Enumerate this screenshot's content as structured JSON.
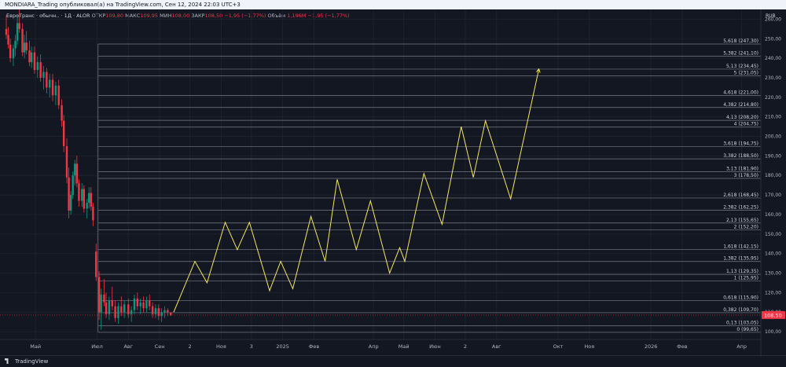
{
  "header": {
    "published_by": "MONDIARA_Trading опубликовал(а) на TradingView.com, Сен 12, 2024 22:03 UTC+3"
  },
  "legend": {
    "symbol": "ЕвроТранс · обычн.. · 1Д · ALOR",
    "open_label": "ОТКР",
    "open": "109,80",
    "high_label": "МАКС",
    "high": "109,95",
    "low_label": "МИН",
    "low": "108,00",
    "close_label": "ЗАКР",
    "close": "108,50",
    "change": "−1,95 (−1,77%)",
    "volume_label": "Объём",
    "volume": "1,196M",
    "volume_change": "−1,95 (−1,77%)"
  },
  "footer": {
    "brand": "TradingView"
  },
  "colors": {
    "up": "#089981",
    "down": "#f23645",
    "projection": "#f5e663",
    "fib": "#787b86",
    "price_tag": "#f23645"
  },
  "chart_data": {
    "type": "candlestick",
    "currency": "RUB",
    "y_ticks": [
      100,
      110,
      120,
      130,
      140,
      150,
      160,
      170,
      180,
      190,
      200,
      210,
      220,
      230,
      240,
      250,
      260
    ],
    "y_tick_labels": [
      "100,00",
      "110,00",
      "120,00",
      "130,00",
      "140,00",
      "150,00",
      "160,00",
      "170,00",
      "180,00",
      "190,00",
      "200,00",
      "210,00",
      "220,00",
      "230,00",
      "240,00",
      "250,00",
      "260,00"
    ],
    "ylim": [
      96,
      265
    ],
    "xlim": [
      "2024-04-02",
      "2026-04-20"
    ],
    "x_ticks": [
      {
        "label": "Май",
        "date": "2024-05-01"
      },
      {
        "label": "Июл",
        "date": "2024-07-01"
      },
      {
        "label": "Авг",
        "date": "2024-08-01"
      },
      {
        "label": "Сен",
        "date": "2024-09-01"
      },
      {
        "label": "2",
        "date": "2024-10-01"
      },
      {
        "label": "Ноя",
        "date": "2024-11-01"
      },
      {
        "label": "3",
        "date": "2024-12-01"
      },
      {
        "label": "2025",
        "date": "2025-01-01"
      },
      {
        "label": "Фев",
        "date": "2025-02-01"
      },
      {
        "label": "Апр",
        "date": "2025-04-01"
      },
      {
        "label": "Май",
        "date": "2025-05-01"
      },
      {
        "label": "Июн",
        "date": "2025-06-01"
      },
      {
        "label": "2",
        "date": "2025-07-01"
      },
      {
        "label": "Авг",
        "date": "2025-08-01"
      },
      {
        "label": "Окт",
        "date": "2025-10-01"
      },
      {
        "label": "Ноя",
        "date": "2025-11-01"
      },
      {
        "label": "2026",
        "date": "2026-01-01"
      },
      {
        "label": "Фев",
        "date": "2026-02-01"
      },
      {
        "label": "Апр",
        "date": "2026-04-01"
      }
    ],
    "current_price": {
      "value": 108.5,
      "label": "108,50"
    },
    "fib_levels": [
      {
        "ratio": "0",
        "value": 99.65,
        "label": "0 (99,65)"
      },
      {
        "ratio": "0,13",
        "value": 103.05,
        "label": "0,13 (103,05)"
      },
      {
        "ratio": "0,382",
        "value": 109.7,
        "label": "0,382 (109,70)"
      },
      {
        "ratio": "0,618",
        "value": 115.9,
        "label": "0,618 (115,90)"
      },
      {
        "ratio": "1",
        "value": 125.95,
        "label": "1 (125,95)"
      },
      {
        "ratio": "1,13",
        "value": 129.35,
        "label": "1,13 (129,35)"
      },
      {
        "ratio": "1,382",
        "value": 135.95,
        "label": "1,382 (135,95)"
      },
      {
        "ratio": "1,618",
        "value": 142.15,
        "label": "1,618 (142,15)"
      },
      {
        "ratio": "2",
        "value": 152.2,
        "label": "2 (152,20)"
      },
      {
        "ratio": "2,13",
        "value": 155.65,
        "label": "2,13 (155,65)"
      },
      {
        "ratio": "2,382",
        "value": 162.25,
        "label": "2,382 (162,25)"
      },
      {
        "ratio": "2,618",
        "value": 168.45,
        "label": "2,618 (168,45)"
      },
      {
        "ratio": "3",
        "value": 178.5,
        "label": "3 (178,50)"
      },
      {
        "ratio": "3,13",
        "value": 181.9,
        "label": "3,13 (181,90)"
      },
      {
        "ratio": "3,382",
        "value": 188.5,
        "label": "3,382 (188,50)"
      },
      {
        "ratio": "3,618",
        "value": 194.75,
        "label": "3,618 (194,75)"
      },
      {
        "ratio": "4",
        "value": 204.75,
        "label": "4 (204,75)"
      },
      {
        "ratio": "4,13",
        "value": 208.2,
        "label": "4,13 (208,20)"
      },
      {
        "ratio": "4,382",
        "value": 214.8,
        "label": "4,382 (214,80)"
      },
      {
        "ratio": "4,618",
        "value": 221.0,
        "label": "4,618 (221,00)"
      },
      {
        "ratio": "5",
        "value": 231.05,
        "label": "5 (231,05)"
      },
      {
        "ratio": "5,13",
        "value": 234.45,
        "label": "5,13 (234,45)"
      },
      {
        "ratio": "5,382",
        "value": 241.1,
        "label": "5,382 (241,10)"
      },
      {
        "ratio": "5,618",
        "value": 247.3,
        "label": "5,618 (247,30)"
      }
    ],
    "projection_path": [
      {
        "date": "2024-09-15",
        "value": 110
      },
      {
        "date": "2024-10-06",
        "value": 136
      },
      {
        "date": "2024-10-18",
        "value": 125
      },
      {
        "date": "2024-11-05",
        "value": 156
      },
      {
        "date": "2024-11-17",
        "value": 142
      },
      {
        "date": "2024-11-29",
        "value": 156
      },
      {
        "date": "2024-12-19",
        "value": 121
      },
      {
        "date": "2024-12-30",
        "value": 136
      },
      {
        "date": "2025-01-11",
        "value": 122
      },
      {
        "date": "2025-01-29",
        "value": 159
      },
      {
        "date": "2025-02-12",
        "value": 136
      },
      {
        "date": "2025-02-24",
        "value": 178
      },
      {
        "date": "2025-03-15",
        "value": 142
      },
      {
        "date": "2025-03-29",
        "value": 167
      },
      {
        "date": "2025-04-17",
        "value": 130
      },
      {
        "date": "2025-04-27",
        "value": 143
      },
      {
        "date": "2025-05-02",
        "value": 136
      },
      {
        "date": "2025-05-21",
        "value": 181
      },
      {
        "date": "2025-06-08",
        "value": 155
      },
      {
        "date": "2025-06-27",
        "value": 205
      },
      {
        "date": "2025-07-09",
        "value": 179
      },
      {
        "date": "2025-07-21",
        "value": 208
      },
      {
        "date": "2025-08-15",
        "value": 168
      },
      {
        "date": "2025-09-12",
        "value": 234.5
      }
    ],
    "candles": [
      {
        "date": "2024-04-02",
        "o": 255,
        "h": 262,
        "l": 250,
        "c": 252
      },
      {
        "date": "2024-04-04",
        "o": 252,
        "h": 256,
        "l": 245,
        "c": 247
      },
      {
        "date": "2024-04-06",
        "o": 247,
        "h": 250,
        "l": 238,
        "c": 240
      },
      {
        "date": "2024-04-09",
        "o": 240,
        "h": 247,
        "l": 236,
        "c": 245
      },
      {
        "date": "2024-04-11",
        "o": 245,
        "h": 252,
        "l": 241,
        "c": 249
      },
      {
        "date": "2024-04-13",
        "o": 249,
        "h": 262,
        "l": 247,
        "c": 258
      },
      {
        "date": "2024-04-15",
        "o": 258,
        "h": 265,
        "l": 253,
        "c": 255
      },
      {
        "date": "2024-04-18",
        "o": 255,
        "h": 258,
        "l": 241,
        "c": 243
      },
      {
        "date": "2024-04-20",
        "o": 243,
        "h": 252,
        "l": 240,
        "c": 248
      },
      {
        "date": "2024-04-22",
        "o": 248,
        "h": 254,
        "l": 242,
        "c": 244
      },
      {
        "date": "2024-04-25",
        "o": 244,
        "h": 249,
        "l": 236,
        "c": 238
      },
      {
        "date": "2024-04-27",
        "o": 238,
        "h": 246,
        "l": 235,
        "c": 243
      },
      {
        "date": "2024-04-30",
        "o": 243,
        "h": 246,
        "l": 232,
        "c": 234
      },
      {
        "date": "2024-05-03",
        "o": 234,
        "h": 241,
        "l": 230,
        "c": 238
      },
      {
        "date": "2024-05-06",
        "o": 238,
        "h": 242,
        "l": 228,
        "c": 230
      },
      {
        "date": "2024-05-09",
        "o": 230,
        "h": 236,
        "l": 224,
        "c": 233
      },
      {
        "date": "2024-05-12",
        "o": 233,
        "h": 235,
        "l": 222,
        "c": 225
      },
      {
        "date": "2024-05-15",
        "o": 225,
        "h": 232,
        "l": 220,
        "c": 229
      },
      {
        "date": "2024-05-18",
        "o": 229,
        "h": 232,
        "l": 218,
        "c": 221
      },
      {
        "date": "2024-05-21",
        "o": 221,
        "h": 228,
        "l": 216,
        "c": 226
      },
      {
        "date": "2024-05-24",
        "o": 226,
        "h": 229,
        "l": 214,
        "c": 216
      },
      {
        "date": "2024-05-27",
        "o": 216,
        "h": 219,
        "l": 205,
        "c": 208
      },
      {
        "date": "2024-05-29",
        "o": 208,
        "h": 211,
        "l": 192,
        "c": 195
      },
      {
        "date": "2024-06-01",
        "o": 195,
        "h": 199,
        "l": 176,
        "c": 179
      },
      {
        "date": "2024-06-03",
        "o": 179,
        "h": 184,
        "l": 158,
        "c": 162
      },
      {
        "date": "2024-06-05",
        "o": 162,
        "h": 172,
        "l": 160,
        "c": 170
      },
      {
        "date": "2024-06-07",
        "o": 170,
        "h": 182,
        "l": 168,
        "c": 180
      },
      {
        "date": "2024-06-09",
        "o": 180,
        "h": 188,
        "l": 175,
        "c": 186
      },
      {
        "date": "2024-06-11",
        "o": 186,
        "h": 190,
        "l": 174,
        "c": 176
      },
      {
        "date": "2024-06-13",
        "o": 176,
        "h": 178,
        "l": 164,
        "c": 167
      },
      {
        "date": "2024-06-16",
        "o": 167,
        "h": 176,
        "l": 164,
        "c": 173
      },
      {
        "date": "2024-06-18",
        "o": 173,
        "h": 175,
        "l": 161,
        "c": 163
      },
      {
        "date": "2024-06-21",
        "o": 163,
        "h": 168,
        "l": 158,
        "c": 166
      },
      {
        "date": "2024-06-23",
        "o": 166,
        "h": 174,
        "l": 163,
        "c": 171
      },
      {
        "date": "2024-06-25",
        "o": 171,
        "h": 174,
        "l": 162,
        "c": 164
      },
      {
        "date": "2024-06-27",
        "o": 164,
        "h": 166,
        "l": 154,
        "c": 157
      },
      {
        "date": "2024-06-30",
        "o": 141,
        "h": 145,
        "l": 126,
        "c": 128
      },
      {
        "date": "2024-07-03",
        "o": 128,
        "h": 131,
        "l": 106,
        "c": 110
      },
      {
        "date": "2024-07-05",
        "o": 110,
        "h": 122,
        "l": 101,
        "c": 119
      },
      {
        "date": "2024-07-08",
        "o": 119,
        "h": 127,
        "l": 113,
        "c": 115
      },
      {
        "date": "2024-07-10",
        "o": 115,
        "h": 120,
        "l": 107,
        "c": 109
      },
      {
        "date": "2024-07-13",
        "o": 109,
        "h": 118,
        "l": 106,
        "c": 116
      },
      {
        "date": "2024-07-16",
        "o": 116,
        "h": 123,
        "l": 111,
        "c": 113
      },
      {
        "date": "2024-07-19",
        "o": 113,
        "h": 116,
        "l": 105,
        "c": 107
      },
      {
        "date": "2024-07-22",
        "o": 107,
        "h": 115,
        "l": 104,
        "c": 113
      },
      {
        "date": "2024-07-25",
        "o": 113,
        "h": 118,
        "l": 108,
        "c": 110
      },
      {
        "date": "2024-07-28",
        "o": 110,
        "h": 116,
        "l": 107,
        "c": 114
      },
      {
        "date": "2024-08-01",
        "o": 114,
        "h": 117,
        "l": 107,
        "c": 109
      },
      {
        "date": "2024-08-04",
        "o": 109,
        "h": 113,
        "l": 105,
        "c": 111
      },
      {
        "date": "2024-08-07",
        "o": 111,
        "h": 119,
        "l": 109,
        "c": 117
      },
      {
        "date": "2024-08-10",
        "o": 117,
        "h": 120,
        "l": 111,
        "c": 113
      },
      {
        "date": "2024-08-13",
        "o": 113,
        "h": 117,
        "l": 109,
        "c": 115
      },
      {
        "date": "2024-08-16",
        "o": 115,
        "h": 118,
        "l": 110,
        "c": 112
      },
      {
        "date": "2024-08-19",
        "o": 112,
        "h": 118,
        "l": 110,
        "c": 116
      },
      {
        "date": "2024-08-22",
        "o": 116,
        "h": 119,
        "l": 111,
        "c": 113
      },
      {
        "date": "2024-08-25",
        "o": 113,
        "h": 115,
        "l": 107,
        "c": 109
      },
      {
        "date": "2024-08-28",
        "o": 109,
        "h": 114,
        "l": 107,
        "c": 112
      },
      {
        "date": "2024-08-31",
        "o": 112,
        "h": 114,
        "l": 106,
        "c": 108
      },
      {
        "date": "2024-09-03",
        "o": 108,
        "h": 112,
        "l": 105,
        "c": 110
      },
      {
        "date": "2024-09-06",
        "o": 110,
        "h": 113,
        "l": 107,
        "c": 111
      },
      {
        "date": "2024-09-09",
        "o": 111,
        "h": 112,
        "l": 108,
        "c": 110
      },
      {
        "date": "2024-09-12",
        "o": 109.8,
        "h": 109.95,
        "l": 108,
        "c": 108.5
      }
    ]
  }
}
